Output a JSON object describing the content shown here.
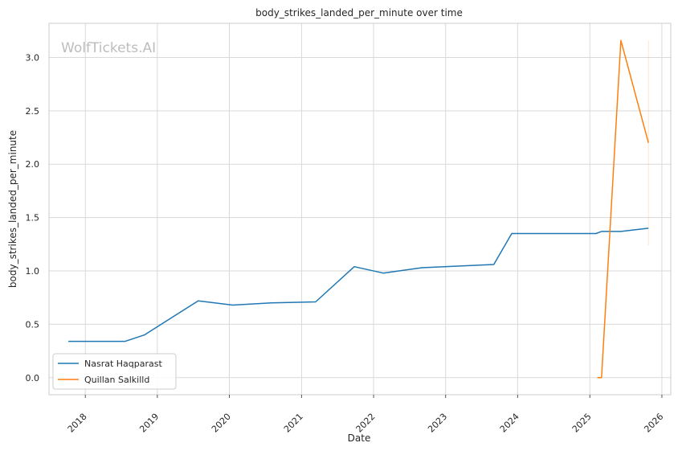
{
  "watermark": "WolfTickets.AI",
  "chart_data": {
    "type": "line",
    "title": "body_strikes_landed_per_minute over time",
    "xlabel": "Date",
    "ylabel": "body_strikes_landed_per_minute",
    "xlim": [
      "2017-07-01",
      "2026-02-15"
    ],
    "ylim": [
      -0.16,
      3.32
    ],
    "x_ticks": [
      "2018",
      "2019",
      "2020",
      "2021",
      "2022",
      "2023",
      "2024",
      "2025",
      "2026"
    ],
    "y_ticks": [
      0.0,
      0.5,
      1.0,
      1.5,
      2.0,
      2.5,
      3.0
    ],
    "y_tick_labels": [
      "0.0",
      "0.5",
      "1.0",
      "1.5",
      "2.0",
      "2.5",
      "3.0"
    ],
    "grid": true,
    "legend_position": "lower-left",
    "series": [
      {
        "name": "Nasrat Haqparast",
        "color": "#1f77b4",
        "points": [
          {
            "x": "2017-10-07",
            "y": 0.34
          },
          {
            "x": "2018-07-22",
            "y": 0.34
          },
          {
            "x": "2018-10-27",
            "y": 0.4
          },
          {
            "x": "2019-07-27",
            "y": 0.72
          },
          {
            "x": "2020-01-18",
            "y": 0.68
          },
          {
            "x": "2020-08-01",
            "y": 0.7
          },
          {
            "x": "2021-03-13",
            "y": 0.71
          },
          {
            "x": "2021-09-25",
            "y": 1.04
          },
          {
            "x": "2022-02-19",
            "y": 0.98
          },
          {
            "x": "2022-09-03",
            "y": 1.03
          },
          {
            "x": "2023-09-02",
            "y": 1.06
          },
          {
            "x": "2023-12-02",
            "y": 1.35
          },
          {
            "x": "2024-05-01",
            "y": 1.35
          },
          {
            "x": "2025-02-01",
            "y": 1.35
          },
          {
            "x": "2025-03-01",
            "y": 1.37
          },
          {
            "x": "2025-06-07",
            "y": 1.37
          },
          {
            "x": "2025-10-25",
            "y": 1.4
          }
        ]
      },
      {
        "name": "Quillan Salkilld",
        "color": "#ff7f0e",
        "points": [
          {
            "x": "2025-02-08",
            "y": 0.0
          },
          {
            "x": "2025-03-01",
            "y": 0.0
          },
          {
            "x": "2025-06-07",
            "y": 3.16
          },
          {
            "x": "2025-10-25",
            "y": 2.2
          }
        ],
        "band": {
          "x": "2025-10-25",
          "ymin": 1.24,
          "ymax": 3.16
        }
      }
    ]
  }
}
